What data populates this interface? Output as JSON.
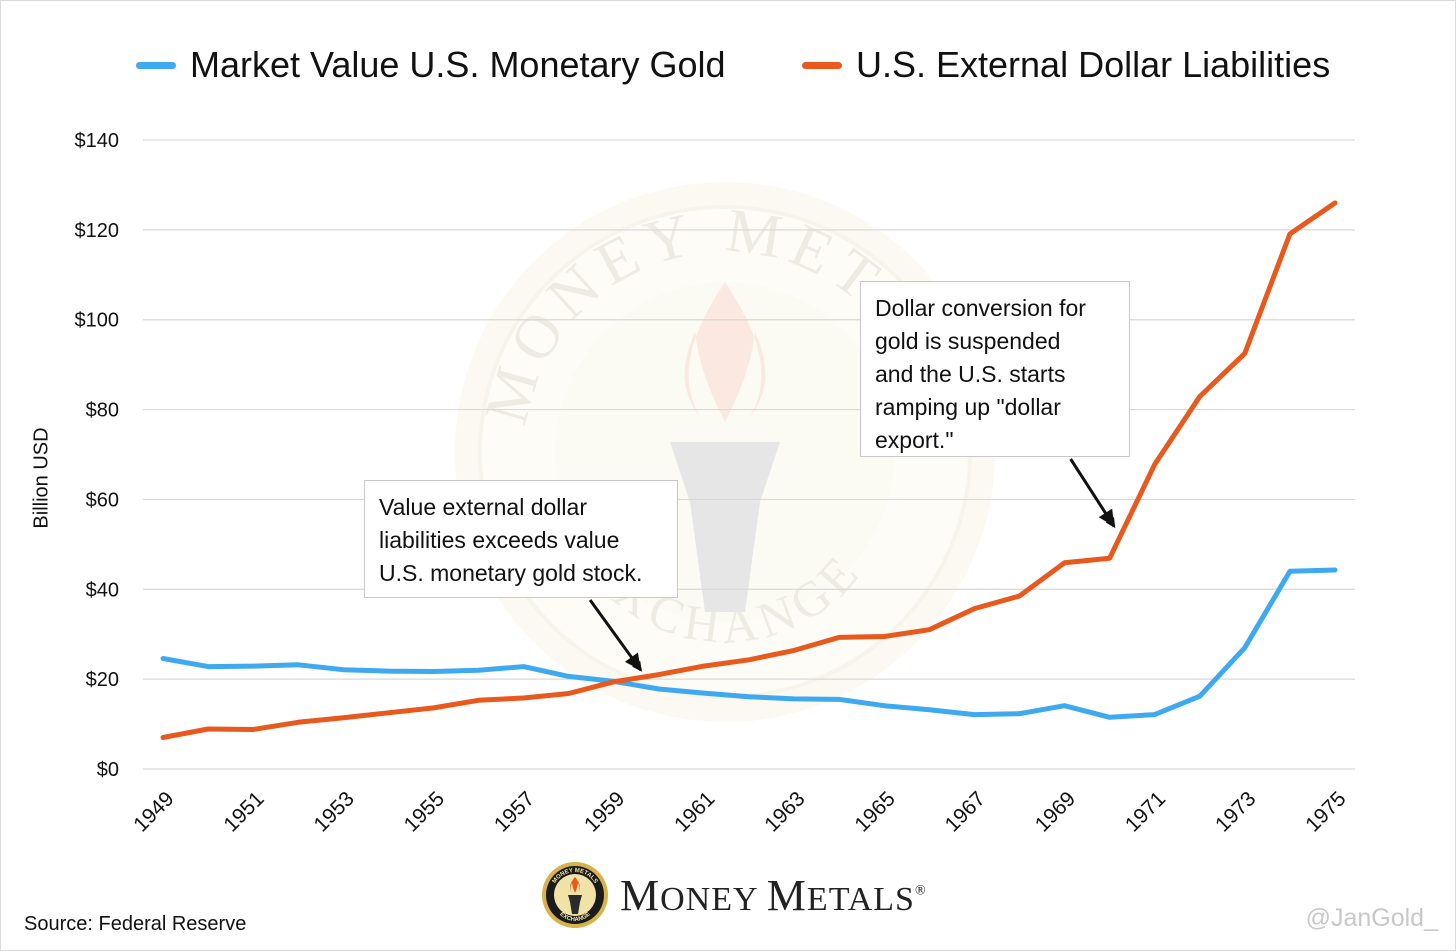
{
  "chart_data": {
    "type": "line",
    "title": "",
    "xlabel": "",
    "ylabel": "Billion USD",
    "ylim": [
      0,
      140
    ],
    "yticks": [
      "$0",
      "$20",
      "$40",
      "$60",
      "$80",
      "$100",
      "$120",
      "$140"
    ],
    "ytick_values": [
      0,
      20,
      40,
      60,
      80,
      100,
      120,
      140
    ],
    "xticks": [
      "1949",
      "1951",
      "1953",
      "1955",
      "1957",
      "1959",
      "1961",
      "1963",
      "1965",
      "1967",
      "1969",
      "1971",
      "1973",
      "1975"
    ],
    "x": [
      1949,
      1950,
      1951,
      1952,
      1953,
      1954,
      1955,
      1956,
      1957,
      1958,
      1959,
      1960,
      1961,
      1962,
      1963,
      1964,
      1965,
      1966,
      1967,
      1968,
      1969,
      1970,
      1971,
      1972,
      1973,
      1974,
      1975
    ],
    "grid": true,
    "legend_position": "top",
    "series": [
      {
        "name": "Market Value U.S. Monetary Gold",
        "color": "#3fa9f0",
        "values": [
          24.6,
          22.8,
          22.9,
          23.2,
          22.1,
          21.8,
          21.7,
          22.0,
          22.8,
          20.6,
          19.5,
          17.8,
          16.9,
          16.1,
          15.6,
          15.5,
          14.1,
          13.2,
          12.1,
          12.3,
          14.1,
          11.5,
          12.1,
          16.2,
          27.0,
          44.0,
          44.3
        ]
      },
      {
        "name": "U.S. External Dollar Liabilities",
        "color": "#e8591d",
        "values": [
          7.0,
          8.9,
          8.8,
          10.4,
          11.4,
          12.5,
          13.6,
          15.3,
          15.8,
          16.8,
          19.4,
          21.0,
          22.9,
          24.3,
          26.4,
          29.3,
          29.5,
          31.0,
          35.7,
          38.5,
          45.9,
          46.9,
          67.8,
          82.9,
          92.5,
          119.1,
          126.0
        ]
      }
    ],
    "annotations": [
      {
        "id": "crossover",
        "text": "Value external dollar liabilities exceeds value U.S. monetary gold stock.",
        "lines": [
          "Value external dollar",
          "liabilities exceeds value",
          "U.S. monetary gold stock."
        ],
        "points_to": {
          "x": 1959.6,
          "y": 22
        }
      },
      {
        "id": "suspension",
        "text": "Dollar conversion for gold is suspended and the U.S. starts ramping up \"dollar export.\"",
        "lines": [
          "Dollar conversion for",
          "gold is suspended",
          "and the U.S. starts",
          "ramping up \"dollar",
          "export.\""
        ],
        "points_to": {
          "x": 1970.1,
          "y": 54
        }
      }
    ]
  },
  "footer": {
    "source": "Source: Federal Reserve",
    "handle": "@JanGold_",
    "logo_name": "Money Metals",
    "logo_text_parts": [
      "M",
      "ONEY ",
      "M",
      "ETALS"
    ],
    "logo_mark": "®",
    "logo_badge_text_top": "MONEY METALS",
    "logo_badge_text_bottom": "EXCHANGE"
  },
  "watermark": {
    "text_top": "MONEY METALS",
    "text_bottom": "EXCHANGE"
  }
}
